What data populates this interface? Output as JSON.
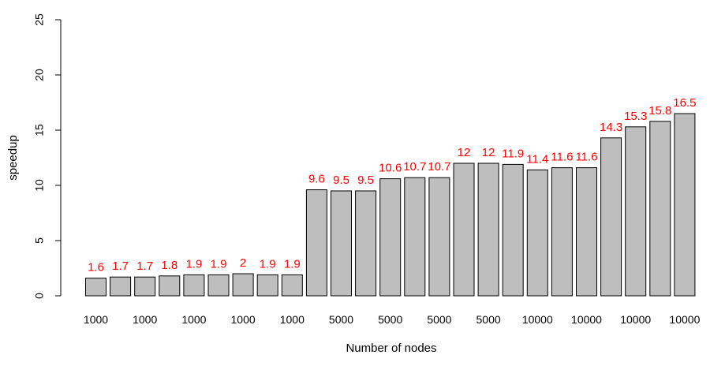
{
  "chart_data": {
    "type": "bar",
    "title": "",
    "xlabel": "Number of nodes",
    "ylabel": "speedup",
    "ylim": [
      0,
      25
    ],
    "yticks": [
      0,
      5,
      10,
      15,
      20,
      25
    ],
    "values": [
      1.6,
      1.7,
      1.7,
      1.8,
      1.9,
      1.9,
      2.0,
      1.9,
      1.9,
      9.6,
      9.5,
      9.5,
      10.6,
      10.7,
      10.7,
      12.0,
      12.0,
      11.9,
      11.4,
      11.6,
      11.6,
      14.3,
      15.3,
      15.8,
      16.5
    ],
    "data_labels": [
      "1.6",
      "1.7",
      "1.7",
      "1.8",
      "1.9",
      "1.9",
      "2",
      "1.9",
      "1.9",
      "9.6",
      "9.5",
      "9.5",
      "10.6",
      "10.7",
      "10.7",
      "12",
      "12",
      "11.9",
      "11.4",
      "11.6",
      "11.6",
      "14.3",
      "15.3",
      "15.8",
      "16.5"
    ],
    "x_tick_labels": [
      {
        "bar_index": 0,
        "label": "1000"
      },
      {
        "bar_index": 2,
        "label": "1000"
      },
      {
        "bar_index": 4,
        "label": "1000"
      },
      {
        "bar_index": 6,
        "label": "1000"
      },
      {
        "bar_index": 8,
        "label": "1000"
      },
      {
        "bar_index": 10,
        "label": "5000"
      },
      {
        "bar_index": 12,
        "label": "5000"
      },
      {
        "bar_index": 14,
        "label": "5000"
      },
      {
        "bar_index": 16,
        "label": "5000"
      },
      {
        "bar_index": 18,
        "label": "10000"
      },
      {
        "bar_index": 20,
        "label": "10000"
      },
      {
        "bar_index": 22,
        "label": "10000"
      },
      {
        "bar_index": 24,
        "label": "10000"
      }
    ],
    "bar_color": "#bebebe",
    "bar_border_color": "#000000",
    "label_color": "#ff0000",
    "grid": false,
    "legend": "none"
  }
}
